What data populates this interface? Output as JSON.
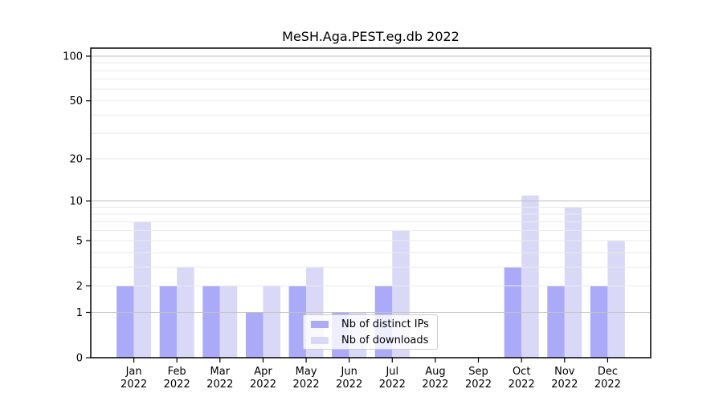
{
  "chart_data": {
    "type": "bar",
    "title": "MeSH.Aga.PEST.eg.db 2022",
    "categories": [
      "Jan 2022",
      "Feb 2022",
      "Mar 2022",
      "Apr 2022",
      "May 2022",
      "Jun 2022",
      "Jul 2022",
      "Aug 2022",
      "Sep 2022",
      "Oct 2022",
      "Nov 2022",
      "Dec 2022"
    ],
    "series": [
      {
        "name": "Nb of distinct IPs",
        "color": "#aaaaf8",
        "values": [
          2,
          2,
          2,
          1,
          2,
          1,
          2,
          0,
          0,
          3,
          2,
          2
        ]
      },
      {
        "name": "Nb of downloads",
        "color": "#d9d9f7",
        "values": [
          7,
          3,
          2,
          2,
          3,
          1,
          6,
          0,
          0,
          11,
          9,
          5
        ]
      }
    ],
    "yscale": "log1p",
    "yticks": [
      0,
      1,
      2,
      5,
      10,
      20,
      50,
      100
    ],
    "major_gridlines": [
      1,
      10,
      100
    ],
    "minor_gridlines": [
      2,
      3,
      4,
      5,
      6,
      7,
      8,
      9,
      20,
      30,
      40,
      50,
      60,
      70,
      80,
      90
    ],
    "ylim": [
      0,
      113
    ],
    "xlabel": "",
    "ylabel": "",
    "grid": true,
    "legend_position": "lower center",
    "colors": {
      "axis": "#000000",
      "grid_major": "#c3c3c3",
      "grid_minor": "#eaeaea",
      "text": "#000000"
    }
  }
}
